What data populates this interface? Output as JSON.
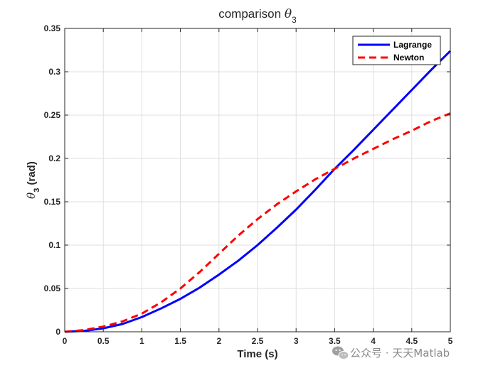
{
  "chart_data": {
    "type": "line",
    "title_prefix": "comparison ",
    "title_symbol": "θ",
    "title_subscript": "3",
    "xlabel": "Time (s)",
    "ylabel_symbol": "θ",
    "ylabel_subscript": "3",
    "ylabel_unit": " (rad)",
    "xlim": [
      0,
      5
    ],
    "ylim": [
      0,
      0.35
    ],
    "xticks": [
      0,
      0.5,
      1,
      1.5,
      2,
      2.5,
      3,
      3.5,
      4,
      4.5,
      5
    ],
    "xtick_labels": [
      "0",
      "0.5",
      "1",
      "1.5",
      "2",
      "2.5",
      "3",
      "3.5",
      "4",
      "4.5",
      "5"
    ],
    "yticks": [
      0,
      0.05,
      0.1,
      0.15,
      0.2,
      0.25,
      0.3,
      0.35
    ],
    "ytick_labels": [
      "0",
      "0.05",
      "0.1",
      "0.15",
      "0.2",
      "0.25",
      "0.3",
      "0.35"
    ],
    "grid": true,
    "legend_position": "top-right",
    "series": [
      {
        "name": "Lagrange",
        "color": "#0000ff",
        "dash": "solid",
        "x": [
          0,
          0.25,
          0.5,
          0.75,
          1,
          1.25,
          1.5,
          1.75,
          2,
          2.25,
          2.5,
          2.75,
          3,
          3.25,
          3.5,
          3.75,
          4,
          4.25,
          4.5,
          4.75,
          5
        ],
        "y": [
          0,
          0.001,
          0.004,
          0.009,
          0.017,
          0.027,
          0.038,
          0.051,
          0.066,
          0.082,
          0.1,
          0.12,
          0.141,
          0.164,
          0.188,
          0.21,
          0.233,
          0.256,
          0.279,
          0.302,
          0.324
        ]
      },
      {
        "name": "Newton",
        "color": "#ff0000",
        "dash": "dashed",
        "x": [
          0,
          0.25,
          0.5,
          0.75,
          1,
          1.25,
          1.5,
          1.75,
          2,
          2.25,
          2.5,
          2.75,
          3,
          3.25,
          3.5,
          3.75,
          4,
          4.25,
          4.5,
          4.75,
          5
        ],
        "y": [
          0,
          0.002,
          0.006,
          0.012,
          0.021,
          0.034,
          0.05,
          0.069,
          0.09,
          0.111,
          0.13,
          0.147,
          0.162,
          0.176,
          0.188,
          0.2,
          0.211,
          0.222,
          0.232,
          0.243,
          0.252
        ]
      }
    ]
  },
  "watermark": {
    "icon": "wechat-icon",
    "text": "公众号 · 天天Matlab"
  }
}
